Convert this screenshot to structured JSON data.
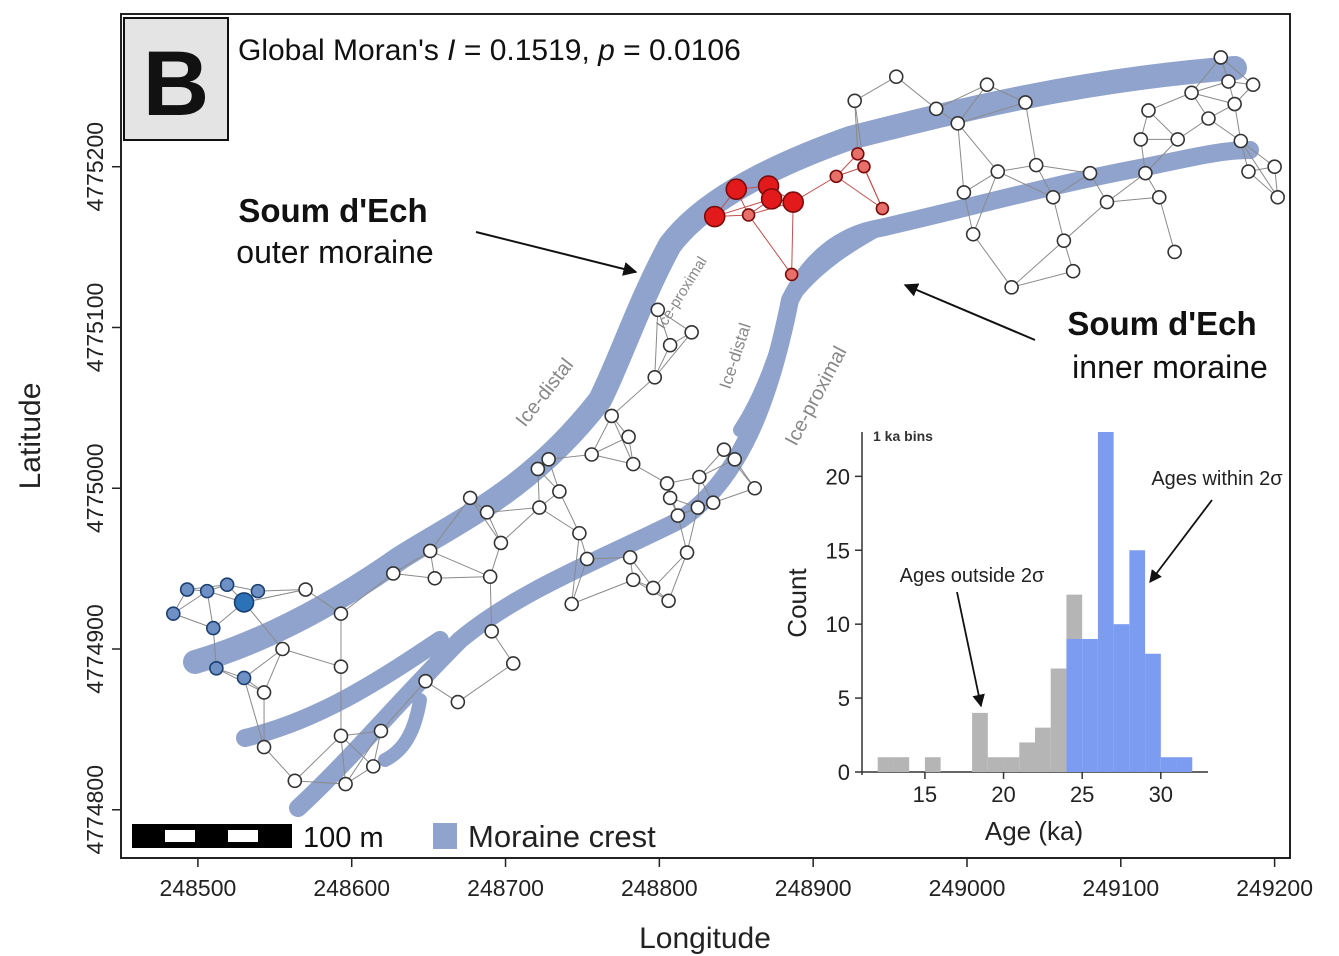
{
  "chart_data": [
    {
      "type": "scatter",
      "panel_label": "B",
      "stat_text": {
        "prefix": "Global Moran's ",
        "I": "I",
        "mid": " = 0.1519,  ",
        "p": "p",
        "suffix": " = 0.0106"
      },
      "xlabel": "Longitude",
      "ylabel": "Latitude",
      "xlim": [
        248450,
        249210
      ],
      "ylim": [
        4774770,
        4775295
      ],
      "xticks": [
        248500,
        248600,
        248700,
        248800,
        248900,
        249000,
        249100,
        249200
      ],
      "xtick_labels": [
        "248500",
        "248600",
        "248700",
        "248800",
        "248900",
        "249000",
        "249100",
        "249200"
      ],
      "yticks": [
        4774800,
        4774900,
        4775000,
        4775100,
        4775200
      ],
      "ytick_labels": [
        "4774800",
        "4774900",
        "4775000",
        "4775100",
        "4775200"
      ],
      "grid": false,
      "annotations": {
        "outer_title": "Soum d'Ech",
        "outer_sub": "outer moraine",
        "inner_title": "Soum d'Ech",
        "inner_sub": "inner moraine",
        "ice_distal_1": "Ice-distal",
        "ice_proximal_1": "Ice-proximal",
        "ice_distal_2": "Ice-distal",
        "ice_proximal_2": "Ice-proximal"
      },
      "legend": {
        "scale_label": "100 m",
        "crest_label": "Moraine crest",
        "placement": "bottom-left"
      },
      "colors": {
        "moraine_crest": "#8fa3cc",
        "hot_large": "#e31a1c",
        "hot_small": "#e7706a",
        "cold_large": "#2c72b8",
        "cold_small": "#6f90c4",
        "neutral": "#ffffff",
        "edge": "#888888"
      },
      "points": [
        {
          "x": 248484,
          "y": 4774922,
          "cluster": "cold"
        },
        {
          "x": 248493,
          "y": 4774937,
          "cluster": "cold"
        },
        {
          "x": 248506,
          "y": 4774936,
          "cluster": "cold"
        },
        {
          "x": 248519,
          "y": 4774940,
          "cluster": "cold"
        },
        {
          "x": 248530,
          "y": 4774929,
          "cluster": "cold-core"
        },
        {
          "x": 248539,
          "y": 4774936,
          "cluster": "cold"
        },
        {
          "x": 248510,
          "y": 4774913,
          "cluster": "cold"
        },
        {
          "x": 248512,
          "y": 4774888,
          "cluster": "cold"
        },
        {
          "x": 248530,
          "y": 4774882,
          "cluster": "cold"
        },
        {
          "x": 248543,
          "y": 4774873,
          "cluster": "none"
        },
        {
          "x": 248555,
          "y": 4774900,
          "cluster": "none"
        },
        {
          "x": 248570,
          "y": 4774937,
          "cluster": "none"
        },
        {
          "x": 248593,
          "y": 4774922,
          "cluster": "none"
        },
        {
          "x": 248593,
          "y": 4774889,
          "cluster": "none"
        },
        {
          "x": 248593,
          "y": 4774846,
          "cluster": "none"
        },
        {
          "x": 248596,
          "y": 4774816,
          "cluster": "none"
        },
        {
          "x": 248543,
          "y": 4774839,
          "cluster": "none"
        },
        {
          "x": 248563,
          "y": 4774818,
          "cluster": "none"
        },
        {
          "x": 248614,
          "y": 4774827,
          "cluster": "none"
        },
        {
          "x": 248619,
          "y": 4774849,
          "cluster": "none"
        },
        {
          "x": 248627,
          "y": 4774947,
          "cluster": "none"
        },
        {
          "x": 248651,
          "y": 4774961,
          "cluster": "none"
        },
        {
          "x": 248654,
          "y": 4774944,
          "cluster": "none"
        },
        {
          "x": 248648,
          "y": 4774880,
          "cluster": "none"
        },
        {
          "x": 248669,
          "y": 4774867,
          "cluster": "none"
        },
        {
          "x": 248677,
          "y": 4774994,
          "cluster": "none"
        },
        {
          "x": 248688,
          "y": 4774985,
          "cluster": "none"
        },
        {
          "x": 248690,
          "y": 4774945,
          "cluster": "none"
        },
        {
          "x": 248697,
          "y": 4774966,
          "cluster": "none"
        },
        {
          "x": 248691,
          "y": 4774911,
          "cluster": "none"
        },
        {
          "x": 248705,
          "y": 4774891,
          "cluster": "none"
        },
        {
          "x": 248721,
          "y": 4775012,
          "cluster": "none"
        },
        {
          "x": 248722,
          "y": 4774988,
          "cluster": "none"
        },
        {
          "x": 248728,
          "y": 4775018,
          "cluster": "none"
        },
        {
          "x": 248735,
          "y": 4774998,
          "cluster": "none"
        },
        {
          "x": 248748,
          "y": 4774972,
          "cluster": "none"
        },
        {
          "x": 248756,
          "y": 4775021,
          "cluster": "none"
        },
        {
          "x": 248753,
          "y": 4774956,
          "cluster": "none"
        },
        {
          "x": 248743,
          "y": 4774928,
          "cluster": "none"
        },
        {
          "x": 248769,
          "y": 4775045,
          "cluster": "none"
        },
        {
          "x": 248780,
          "y": 4775032,
          "cluster": "none"
        },
        {
          "x": 248783,
          "y": 4775015,
          "cluster": "none"
        },
        {
          "x": 248781,
          "y": 4774957,
          "cluster": "none"
        },
        {
          "x": 248783,
          "y": 4774943,
          "cluster": "none"
        },
        {
          "x": 248796,
          "y": 4774938,
          "cluster": "none"
        },
        {
          "x": 248806,
          "y": 4774930,
          "cluster": "none"
        },
        {
          "x": 248797,
          "y": 4775069,
          "cluster": "none"
        },
        {
          "x": 248807,
          "y": 4775089,
          "cluster": "none"
        },
        {
          "x": 248821,
          "y": 4775097,
          "cluster": "none"
        },
        {
          "x": 248799,
          "y": 4775111,
          "cluster": "none"
        },
        {
          "x": 248807,
          "y": 4774994,
          "cluster": "none"
        },
        {
          "x": 248812,
          "y": 4774983,
          "cluster": "none"
        },
        {
          "x": 248818,
          "y": 4774960,
          "cluster": "none"
        },
        {
          "x": 248805,
          "y": 4775003,
          "cluster": "none"
        },
        {
          "x": 248826,
          "y": 4775007,
          "cluster": "none"
        },
        {
          "x": 248825,
          "y": 4774988,
          "cluster": "none"
        },
        {
          "x": 248835,
          "y": 4774991,
          "cluster": "none"
        },
        {
          "x": 248842,
          "y": 4775024,
          "cluster": "none"
        },
        {
          "x": 248849,
          "y": 4775018,
          "cluster": "none"
        },
        {
          "x": 248862,
          "y": 4775000,
          "cluster": "none"
        },
        {
          "x": 248836,
          "y": 4775169,
          "cluster": "hot"
        },
        {
          "x": 248850,
          "y": 4775186,
          "cluster": "hot"
        },
        {
          "x": 248871,
          "y": 4775188,
          "cluster": "hot"
        },
        {
          "x": 248873,
          "y": 4775180,
          "cluster": "hot"
        },
        {
          "x": 248887,
          "y": 4775178,
          "cluster": "hot"
        },
        {
          "x": 248858,
          "y": 4775170,
          "cluster": "hot-edge"
        },
        {
          "x": 248886,
          "y": 4775133,
          "cluster": "hot-edge"
        },
        {
          "x": 248915,
          "y": 4775194,
          "cluster": "hot-edge"
        },
        {
          "x": 248929,
          "y": 4775208,
          "cluster": "hot-edge"
        },
        {
          "x": 248933,
          "y": 4775200,
          "cluster": "hot-edge"
        },
        {
          "x": 248945,
          "y": 4775174,
          "cluster": "hot-edge"
        },
        {
          "x": 248927,
          "y": 4775241,
          "cluster": "none"
        },
        {
          "x": 248954,
          "y": 4775256,
          "cluster": "none"
        },
        {
          "x": 248980,
          "y": 4775236,
          "cluster": "none"
        },
        {
          "x": 248994,
          "y": 4775227,
          "cluster": "none"
        },
        {
          "x": 249013,
          "y": 4775251,
          "cluster": "none"
        },
        {
          "x": 248998,
          "y": 4775184,
          "cluster": "none"
        },
        {
          "x": 249020,
          "y": 4775197,
          "cluster": "none"
        },
        {
          "x": 249038,
          "y": 4775240,
          "cluster": "none"
        },
        {
          "x": 249045,
          "y": 4775201,
          "cluster": "none"
        },
        {
          "x": 249004,
          "y": 4775158,
          "cluster": "none"
        },
        {
          "x": 249029,
          "y": 4775125,
          "cluster": "none"
        },
        {
          "x": 249056,
          "y": 4775181,
          "cluster": "none"
        },
        {
          "x": 249063,
          "y": 4775154,
          "cluster": "none"
        },
        {
          "x": 249069,
          "y": 4775135,
          "cluster": "none"
        },
        {
          "x": 249080,
          "y": 4775196,
          "cluster": "none"
        },
        {
          "x": 249091,
          "y": 4775178,
          "cluster": "none"
        },
        {
          "x": 249113,
          "y": 4775217,
          "cluster": "none"
        },
        {
          "x": 249118,
          "y": 4775235,
          "cluster": "none"
        },
        {
          "x": 249116,
          "y": 4775196,
          "cluster": "none"
        },
        {
          "x": 249125,
          "y": 4775181,
          "cluster": "none"
        },
        {
          "x": 249135,
          "y": 4775147,
          "cluster": "none"
        },
        {
          "x": 249146,
          "y": 4775246,
          "cluster": "none"
        },
        {
          "x": 249137,
          "y": 4775217,
          "cluster": "none"
        },
        {
          "x": 249157,
          "y": 4775230,
          "cluster": "none"
        },
        {
          "x": 249165,
          "y": 4775268,
          "cluster": "none"
        },
        {
          "x": 249170,
          "y": 4775253,
          "cluster": "none"
        },
        {
          "x": 249174,
          "y": 4775239,
          "cluster": "none"
        },
        {
          "x": 249183,
          "y": 4775197,
          "cluster": "none"
        },
        {
          "x": 249186,
          "y": 4775251,
          "cluster": "none"
        },
        {
          "x": 249178,
          "y": 4775216,
          "cluster": "none"
        },
        {
          "x": 249200,
          "y": 4775200,
          "cluster": "none"
        },
        {
          "x": 249202,
          "y": 4775181,
          "cluster": "none"
        }
      ]
    },
    {
      "type": "bar",
      "title": "1 ka bins",
      "xlabel": "Age (ka)",
      "ylabel": "Count",
      "xlim": [
        11,
        33
      ],
      "ylim": [
        0,
        23
      ],
      "xticks": [
        15,
        20,
        25,
        30
      ],
      "yticks": [
        0,
        5,
        10,
        15,
        20
      ],
      "bin_width": 1,
      "bins": [
        {
          "start": 12,
          "count": 1,
          "group": "outside"
        },
        {
          "start": 13,
          "count": 1,
          "group": "outside"
        },
        {
          "start": 15,
          "count": 1,
          "group": "outside"
        },
        {
          "start": 18,
          "count": 4,
          "group": "outside"
        },
        {
          "start": 19,
          "count": 1,
          "group": "outside"
        },
        {
          "start": 20,
          "count": 1,
          "group": "outside"
        },
        {
          "start": 21,
          "count": 2,
          "group": "outside"
        },
        {
          "start": 22,
          "count": 3,
          "group": "outside"
        },
        {
          "start": 23,
          "count": 7,
          "group": "outside"
        },
        {
          "start": 24,
          "count": 12,
          "group": "outside"
        },
        {
          "start": 24,
          "count": 9,
          "group": "within"
        },
        {
          "start": 25,
          "count": 9,
          "group": "within"
        },
        {
          "start": 26,
          "count": 23,
          "group": "within"
        },
        {
          "start": 27,
          "count": 10,
          "group": "within"
        },
        {
          "start": 28,
          "count": 15,
          "group": "within"
        },
        {
          "start": 29,
          "count": 8,
          "group": "within"
        },
        {
          "start": 30,
          "count": 1,
          "group": "within"
        },
        {
          "start": 31,
          "count": 1,
          "group": "within"
        }
      ],
      "annotations": {
        "within": "Ages within 2σ",
        "outside": "Ages outside 2σ"
      },
      "colors": {
        "within": "#7b9cf0",
        "outside": "#b5b5b5"
      }
    }
  ]
}
